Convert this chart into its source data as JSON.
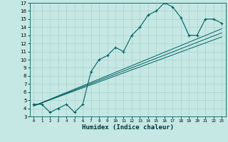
{
  "xlabel": "Humidex (Indice chaleur)",
  "bg_color": "#c5e8e5",
  "grid_color": "#b0d4d0",
  "line_color": "#006060",
  "xlim": [
    -0.5,
    23.5
  ],
  "ylim": [
    3,
    17
  ],
  "xticks": [
    0,
    1,
    2,
    3,
    4,
    5,
    6,
    7,
    8,
    9,
    10,
    11,
    12,
    13,
    14,
    15,
    16,
    17,
    18,
    19,
    20,
    21,
    22,
    23
  ],
  "yticks": [
    3,
    4,
    5,
    6,
    7,
    8,
    9,
    10,
    11,
    12,
    13,
    14,
    15,
    16,
    17
  ],
  "main_x": [
    0,
    1,
    2,
    3,
    4,
    5,
    6,
    7,
    8,
    9,
    10,
    11,
    12,
    13,
    14,
    15,
    16,
    17,
    18,
    19,
    20,
    21,
    22,
    23
  ],
  "main_y": [
    4.5,
    4.5,
    3.5,
    4.0,
    4.5,
    3.5,
    4.5,
    8.5,
    10.0,
    10.5,
    11.5,
    11.0,
    13.0,
    14.0,
    15.5,
    16.0,
    17.0,
    16.5,
    15.2,
    13.0,
    13.0,
    15.0,
    15.0,
    14.5
  ],
  "reg_lines": [
    {
      "x": [
        0,
        23
      ],
      "y": [
        4.3,
        12.8
      ]
    },
    {
      "x": [
        0,
        23
      ],
      "y": [
        4.3,
        13.3
      ]
    },
    {
      "x": [
        0,
        23
      ],
      "y": [
        4.3,
        13.8
      ]
    }
  ]
}
